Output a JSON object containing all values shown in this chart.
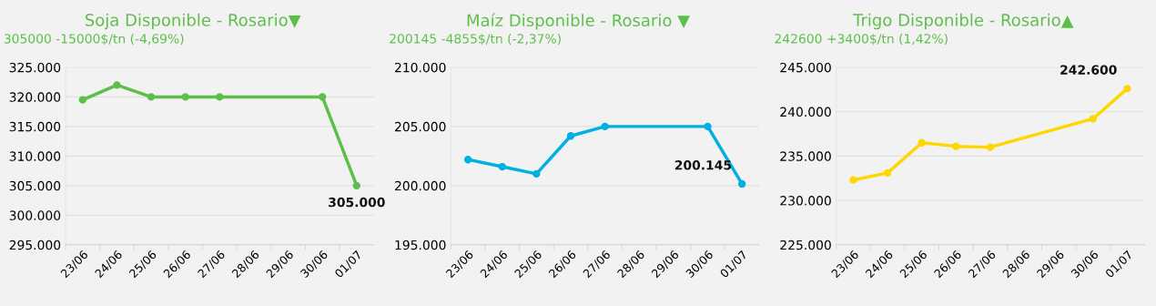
{
  "chart_data": [
    {
      "type": "line",
      "title": "Soja Disponible - Rosario▼",
      "subtitle": "305000 -15000$/tn (-4,69%)",
      "categories": [
        "23/06",
        "24/06",
        "25/06",
        "26/06",
        "27/06",
        "28/06",
        "29/06",
        "30/06",
        "01/07"
      ],
      "series": [
        {
          "color": "#5cbf4a",
          "values": [
            319500,
            322000,
            320000,
            320000,
            320000,
            null,
            null,
            320000,
            305000
          ]
        }
      ],
      "value_labels": [
        null,
        null,
        null,
        null,
        null,
        null,
        null,
        null,
        "305.000"
      ],
      "ylim": [
        295000,
        325000
      ],
      "yticks": [
        {
          "value": 295000,
          "label": "295.000"
        },
        {
          "value": 300000,
          "label": "300.000"
        },
        {
          "value": 305000,
          "label": "305.000"
        },
        {
          "value": 310000,
          "label": "310.000"
        },
        {
          "value": 315000,
          "label": "315.000"
        },
        {
          "value": 320000,
          "label": "320.000"
        },
        {
          "value": 325000,
          "label": "325.000"
        }
      ],
      "grid": "y",
      "marker": "circle",
      "line_style": "solid",
      "legend": false
    },
    {
      "type": "line",
      "title": "Maíz Disponible - Rosario ▼",
      "subtitle": "200145 -4855$/tn (-2,37%)",
      "categories": [
        "23/06",
        "24/06",
        "25/06",
        "26/06",
        "27/06",
        "28/06",
        "29/06",
        "30/06",
        "01/07"
      ],
      "series": [
        {
          "color": "#00b0e0",
          "values": [
            202200,
            201600,
            201000,
            204200,
            205000,
            null,
            null,
            205000,
            200145
          ]
        }
      ],
      "value_labels": [
        null,
        null,
        null,
        null,
        null,
        null,
        null,
        null,
        "200.145"
      ],
      "ylim": [
        195000,
        210000
      ],
      "yticks": [
        {
          "value": 195000,
          "label": "195.000"
        },
        {
          "value": 200000,
          "label": "200.000"
        },
        {
          "value": 205000,
          "label": "205.000"
        },
        {
          "value": 210000,
          "label": "210.000"
        }
      ],
      "grid": "y",
      "marker": "circle",
      "line_style": "solid",
      "legend": false
    },
    {
      "type": "line",
      "title": "Trigo Disponible - Rosario▲",
      "subtitle": "242600 +3400$/tn (1,42%)",
      "categories": [
        "23/06",
        "24/06",
        "25/06",
        "26/06",
        "27/06",
        "28/06",
        "29/06",
        "30/06",
        "01/07"
      ],
      "series": [
        {
          "color": "#ffd700",
          "values": [
            232300,
            233100,
            236500,
            236100,
            236000,
            null,
            null,
            239200,
            242600
          ]
        }
      ],
      "value_labels": [
        null,
        null,
        null,
        null,
        null,
        null,
        null,
        null,
        "242.600"
      ],
      "ylim": [
        225000,
        245000
      ],
      "yticks": [
        {
          "value": 225000,
          "label": "225.000"
        },
        {
          "value": 230000,
          "label": "230.000"
        },
        {
          "value": 235000,
          "label": "235.000"
        },
        {
          "value": 240000,
          "label": "240.000"
        },
        {
          "value": 245000,
          "label": "245.000"
        }
      ],
      "grid": "y",
      "marker": "circle",
      "line_style": "solid",
      "legend": false
    }
  ]
}
